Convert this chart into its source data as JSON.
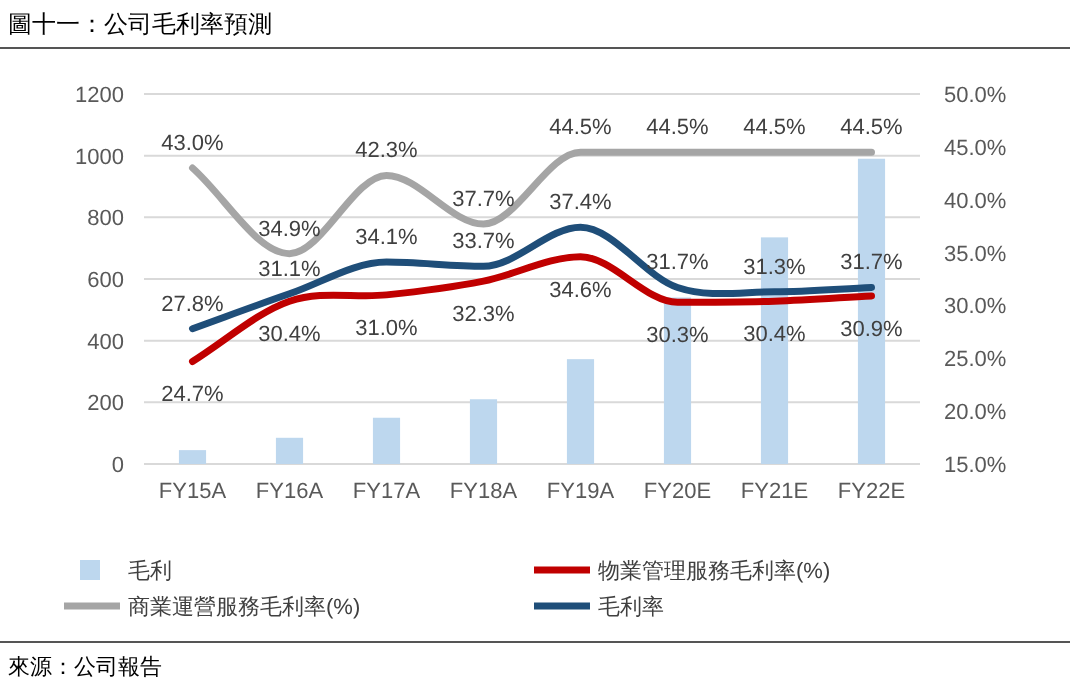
{
  "chart_data": {
    "type": "bar",
    "title": "圖十一：公司毛利率預測",
    "categories": [
      "FY15A",
      "FY16A",
      "FY17A",
      "FY18A",
      "FY19A",
      "FY20E",
      "FY21E",
      "FY22E"
    ],
    "series": [
      {
        "name": "毛利",
        "color": "#bdd7ee",
        "values": [
          45,
          85,
          150,
          210,
          340,
          540,
          735,
          990
        ]
      },
      {
        "name": "物業管理服務毛利率(%)",
        "type": "line",
        "axis": "y2",
        "color": "#c00000",
        "values": [
          24.7,
          30.4,
          31.0,
          32.3,
          34.6,
          30.3,
          30.4,
          30.9
        ],
        "value_labels": [
          "24.7%",
          "30.4%",
          "31.0%",
          "32.3%",
          "34.6%",
          "30.3%",
          "30.4%",
          "30.9%"
        ]
      },
      {
        "name": "商業運營服務毛利率(%)",
        "type": "line",
        "axis": "y2",
        "color": "#a5a5a5",
        "values": [
          43.0,
          34.9,
          42.3,
          37.7,
          44.5,
          44.5,
          44.5,
          44.5
        ],
        "value_labels": [
          "43.0%",
          "34.9%",
          "42.3%",
          "37.7%",
          "44.5%",
          "44.5%",
          "44.5%",
          "44.5%"
        ]
      },
      {
        "name": "毛利率",
        "type": "line",
        "axis": "y2",
        "color": "#1f4e79",
        "values": [
          27.8,
          31.1,
          34.1,
          33.7,
          37.4,
          31.7,
          31.3,
          31.7
        ],
        "value_labels": [
          "27.8%",
          "31.1%",
          "34.1%",
          "33.7%",
          "37.4%",
          "31.7%",
          "31.3%",
          "31.7%"
        ]
      }
    ],
    "ylim": [
      0,
      1200
    ],
    "yticks": [
      0,
      200,
      400,
      600,
      800,
      1000,
      1200
    ],
    "y2lim": [
      15,
      50
    ],
    "y2ticks": [
      {
        "value": 15,
        "label": "15.0%"
      },
      {
        "value": 20,
        "label": "20.0%"
      },
      {
        "value": 25,
        "label": "25.0%"
      },
      {
        "value": 30,
        "label": "30.0%"
      },
      {
        "value": 35,
        "label": "35.0%"
      },
      {
        "value": 40,
        "label": "40.0%"
      },
      {
        "value": 45,
        "label": "45.0%"
      },
      {
        "value": 50,
        "label": "50.0%"
      }
    ],
    "grid": "y",
    "legend": "bottom",
    "annotations": [
      "來源：公司報告"
    ]
  }
}
